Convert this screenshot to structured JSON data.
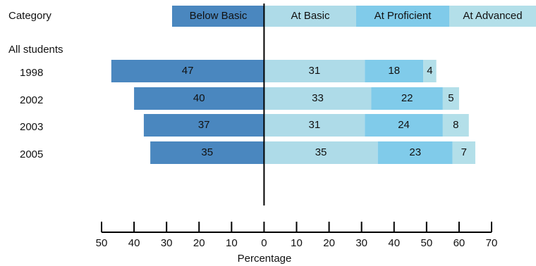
{
  "chart_data": {
    "type": "diverging_bar",
    "category_label": "Category",
    "group_label": "All students",
    "xlabel": "Percentage",
    "categories": [
      "1998",
      "2002",
      "2003",
      "2005"
    ],
    "series": [
      {
        "name": "Below Basic",
        "color": "#4a87bf",
        "values": [
          -47,
          -40,
          -37,
          -35
        ],
        "value_labels": [
          "47",
          "40",
          "37",
          "35"
        ]
      },
      {
        "name": "At Basic",
        "color": "#aedbe8",
        "values": [
          31,
          33,
          31,
          35
        ]
      },
      {
        "name": "At Proficient",
        "color": "#80cbea",
        "values": [
          18,
          22,
          24,
          23
        ]
      },
      {
        "name": "At Advanced",
        "color": "#b3dfe9",
        "values": [
          4,
          5,
          8,
          7
        ]
      }
    ],
    "xlim": [
      -50,
      70
    ],
    "xticks": [
      {
        "value": -50,
        "label": "50"
      },
      {
        "value": -40,
        "label": "40"
      },
      {
        "value": -30,
        "label": "30"
      },
      {
        "value": -20,
        "label": "20"
      },
      {
        "value": -10,
        "label": "10"
      },
      0,
      10,
      20,
      30,
      40,
      50,
      60,
      70
    ]
  }
}
